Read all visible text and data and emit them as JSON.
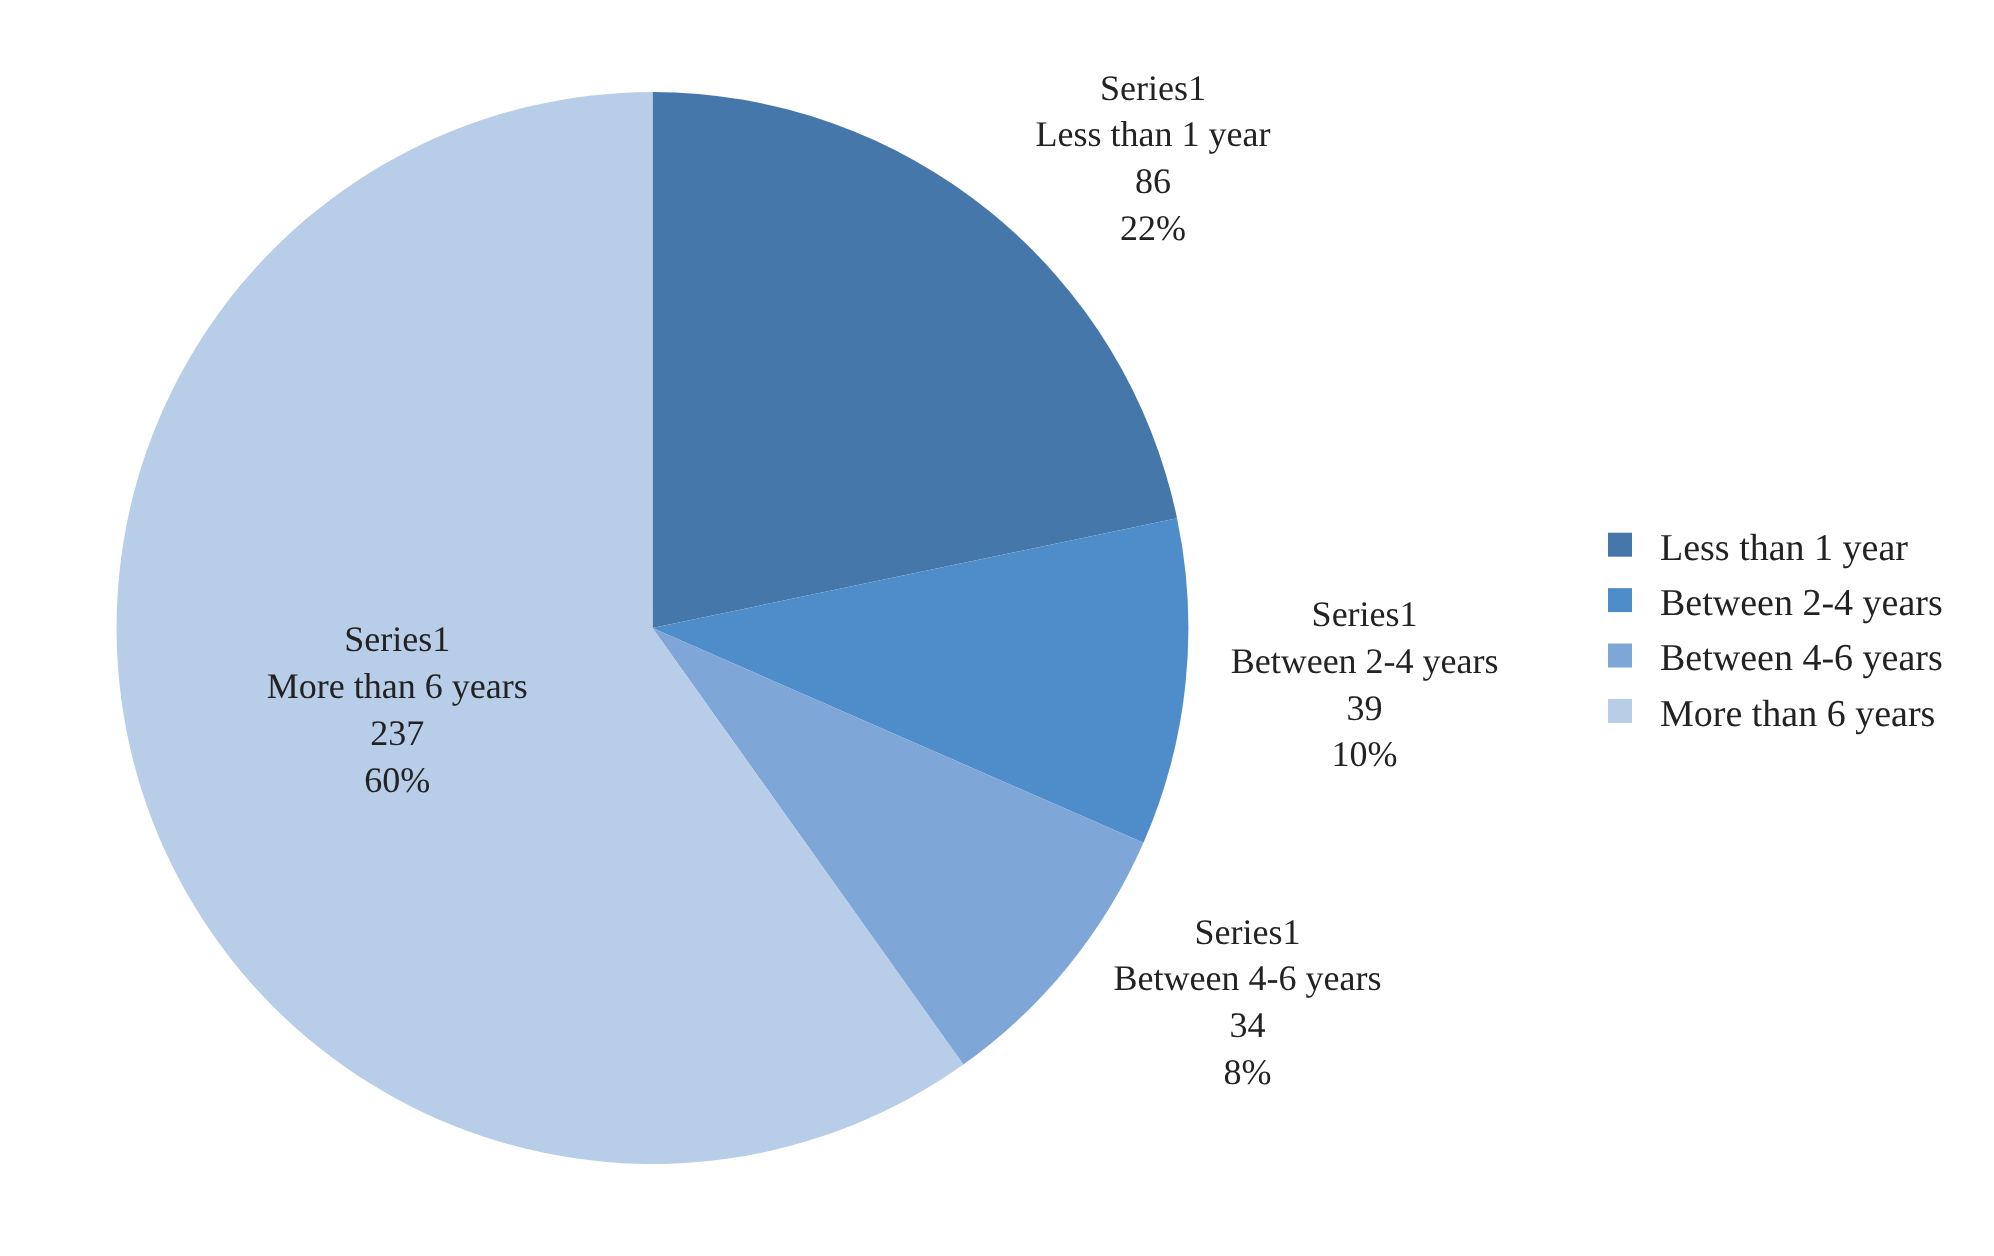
{
  "chart_data": {
    "type": "pie",
    "categories": [
      "Less than 1 year",
      "Between 2-4 years",
      "Between 4-6 years",
      "More than 6 years"
    ],
    "series": [
      {
        "name": "Series1",
        "values": [
          86,
          39,
          34,
          237
        ],
        "value_labels": [
          "86\n22%",
          "39\n10%",
          "34\n8%",
          "237\n60%"
        ]
      }
    ],
    "colors": [
      "#4677ab",
      "#4f8dca",
      "#7ea7d8",
      "#b8cde8"
    ],
    "legend": "right"
  }
}
